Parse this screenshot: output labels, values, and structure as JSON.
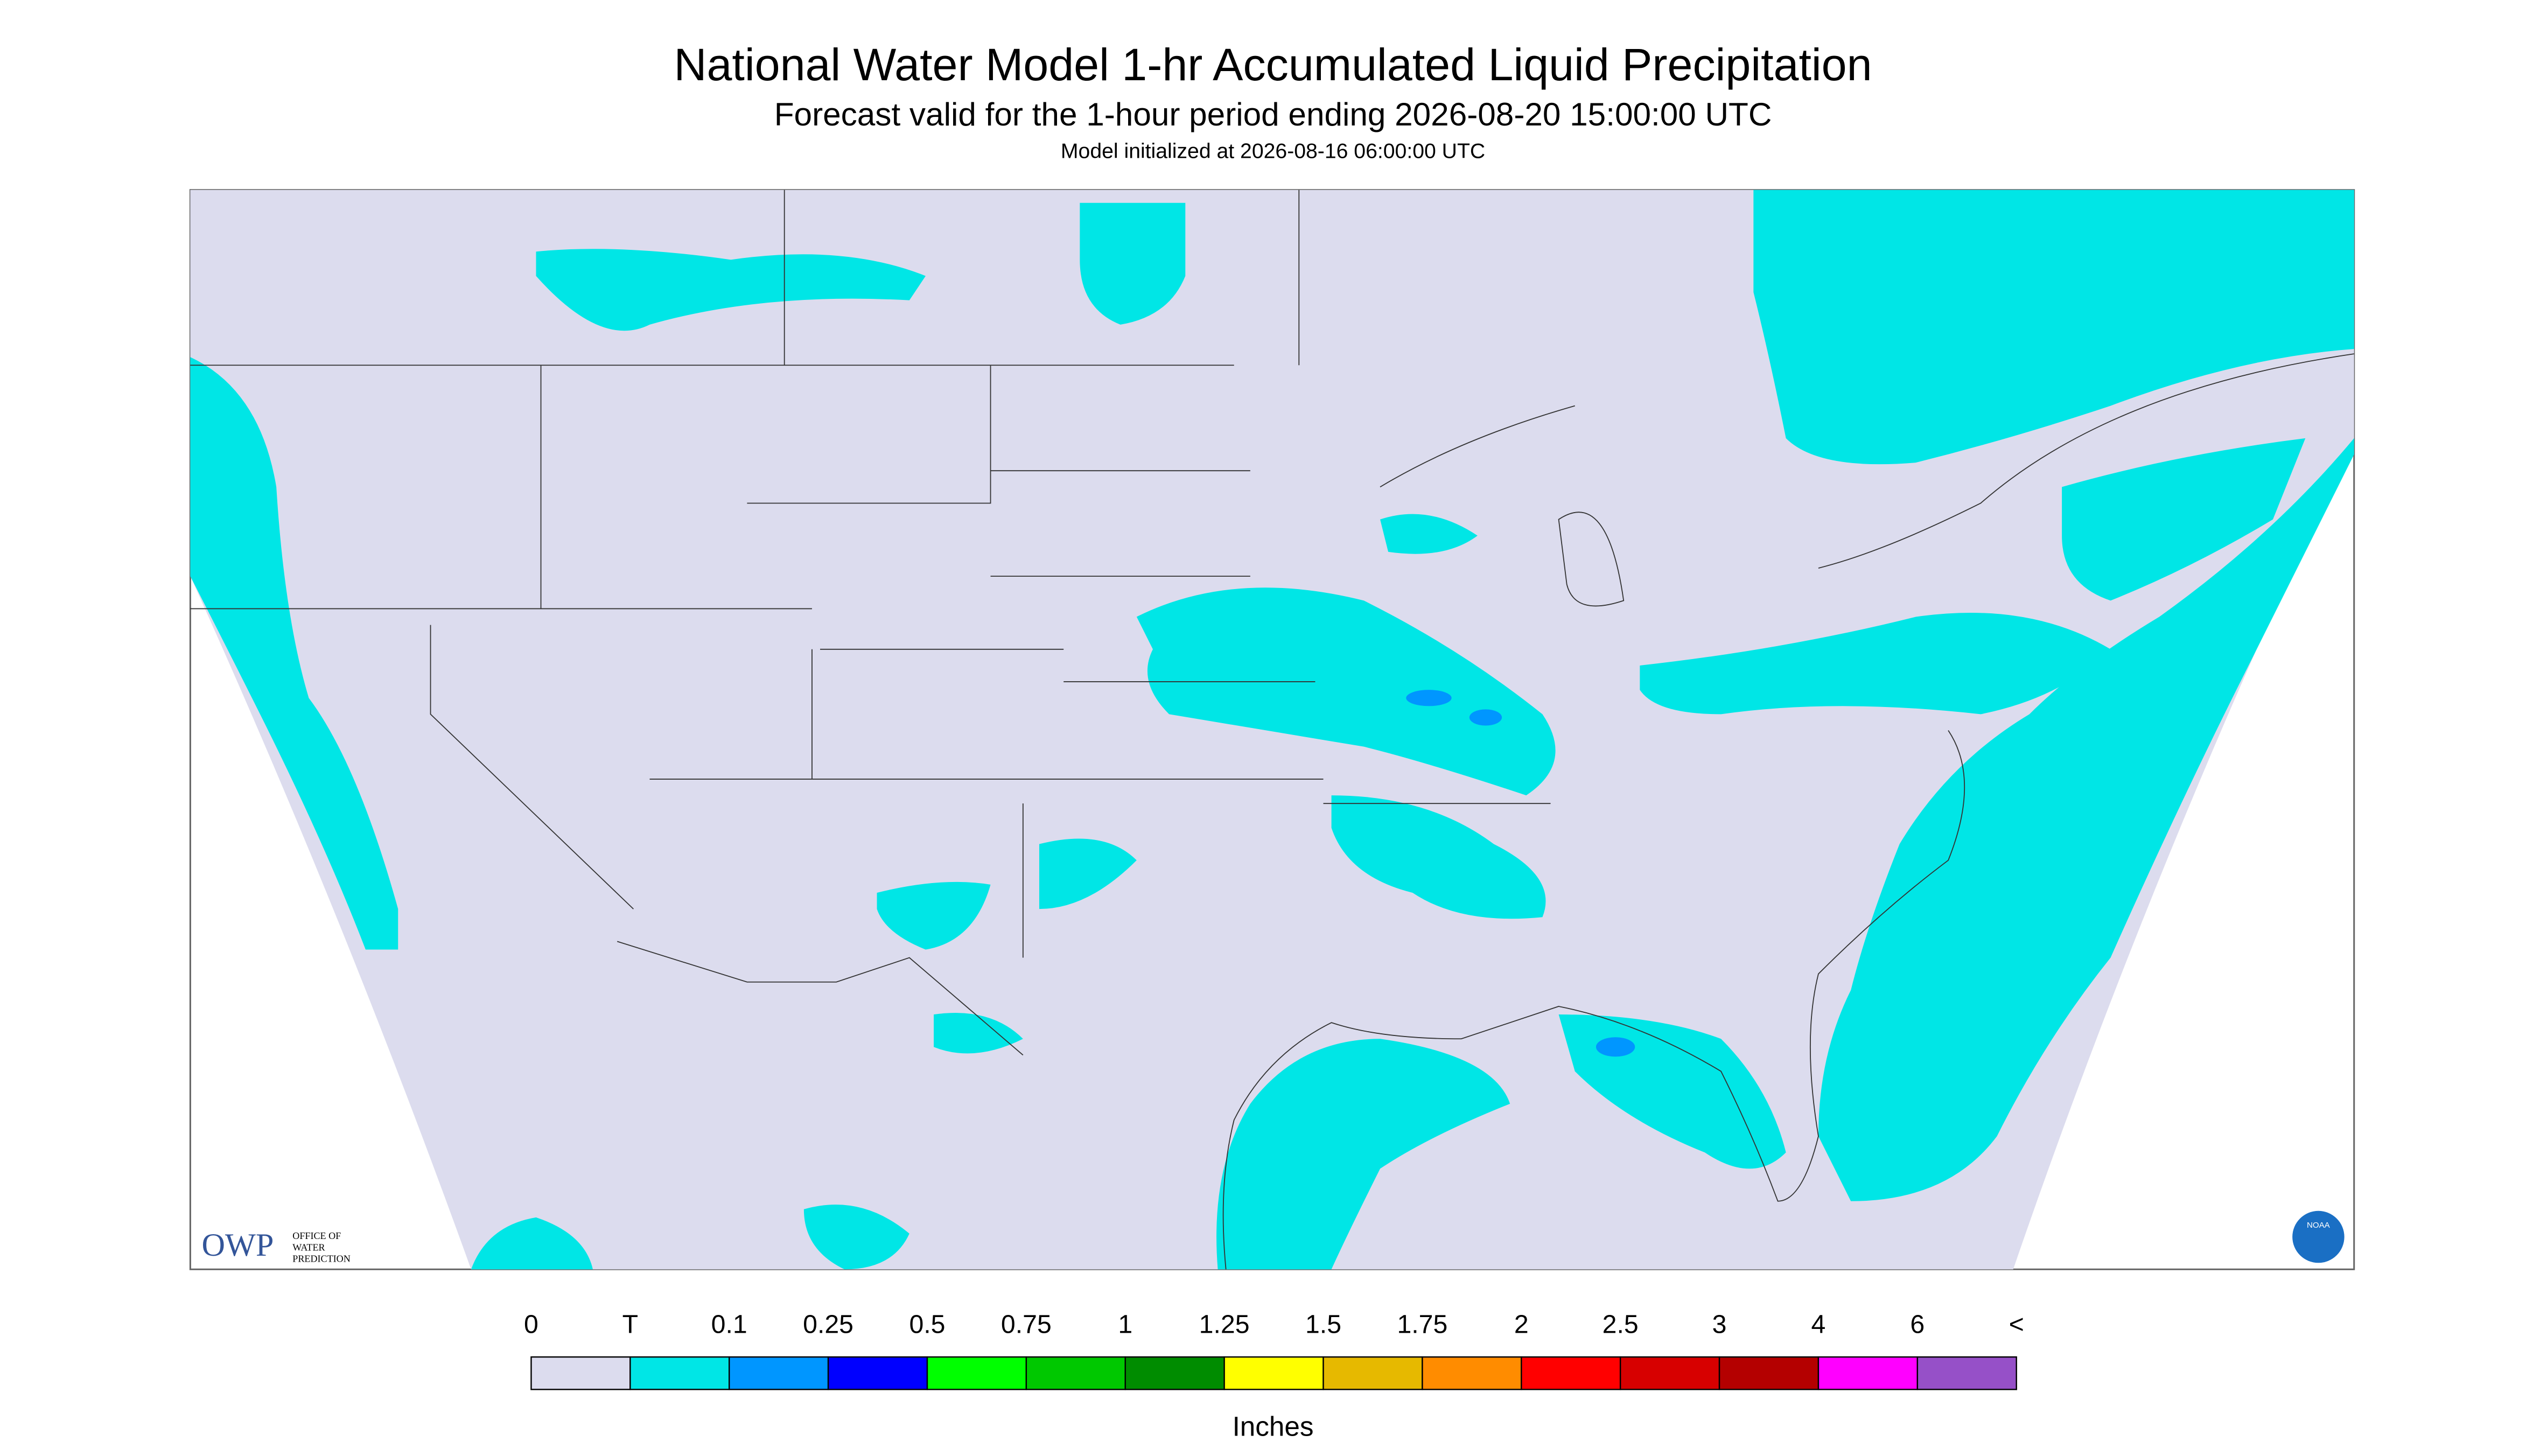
{
  "header": {
    "title": "National Water Model 1-hr Accumulated Liquid Precipitation",
    "subtitle": "Forecast valid for the 1-hour period ending 2026-08-20 15:00:00 UTC",
    "init": "Model initialized at 2026-08-16 06:00:00 UTC"
  },
  "logo": {
    "owp": "OWP",
    "office": [
      "OFFICE OF",
      "WATER",
      "PREDICTION"
    ],
    "noaa": "NOAA"
  },
  "legend": {
    "labels": [
      "0",
      "T",
      "0.1",
      "0.25",
      "0.5",
      "0.75",
      "1",
      "1.25",
      "1.5",
      "1.75",
      "2",
      "2.5",
      "3",
      "4",
      "6",
      "<"
    ],
    "colors": [
      "#dcdcee",
      "#00e6e6",
      "#0096ff",
      "#0000ff",
      "#00ff00",
      "#00c800",
      "#008c00",
      "#ffff00",
      "#e6b900",
      "#ff8c00",
      "#ff0000",
      "#d70000",
      "#b40000",
      "#ff00ff",
      "#9650c8"
    ],
    "unit": "Inches"
  }
}
